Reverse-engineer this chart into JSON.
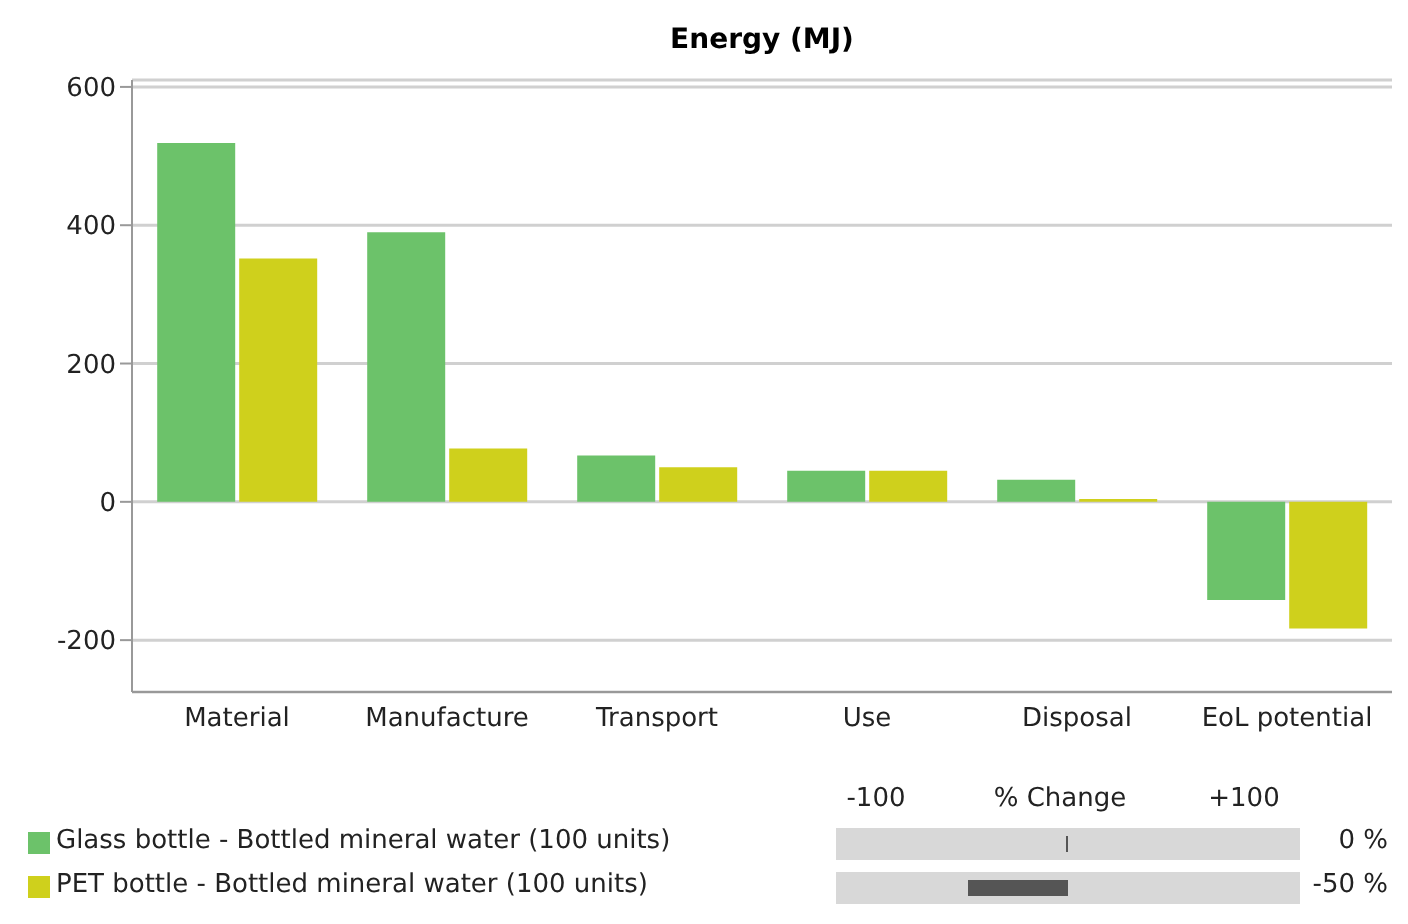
{
  "chart_data": {
    "type": "bar",
    "title": "Energy (MJ)",
    "categories": [
      "Material",
      "Manufacture",
      "Transport",
      "Use",
      "Disposal",
      "EoL potential"
    ],
    "series": [
      {
        "name": "Glass bottle - Bottled mineral water (100 units)",
        "color": "#6cc26a",
        "values": [
          519,
          390,
          67,
          45,
          32,
          -142
        ]
      },
      {
        "name": "PET bottle - Bottled mineral water (100 units)",
        "color": "#cfd01c",
        "values": [
          352,
          77,
          50,
          45,
          4,
          -183
        ]
      }
    ],
    "ylim": [
      -275,
      610
    ],
    "yticks": [
      -200,
      0,
      200,
      400,
      600
    ],
    "grid": "y",
    "legend": "bottom",
    "annotations": [
      "-100",
      "% Change",
      "+100",
      "0 %",
      "-50 %"
    ]
  }
}
